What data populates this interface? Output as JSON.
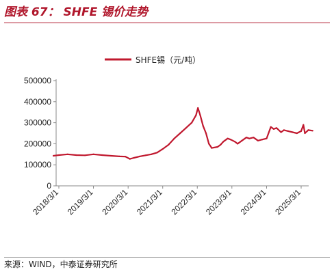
{
  "header": {
    "title": "图表 67： SHFE 锡价走势"
  },
  "footer": {
    "source": "来源：WIND，中泰证券研究所"
  },
  "chart_data": {
    "type": "line",
    "title": "",
    "xlabel": "",
    "ylabel": "",
    "legend_position": "top-center",
    "grid": false,
    "ylim": [
      0,
      500000
    ],
    "y_ticks": [
      "0",
      "100000",
      "200000",
      "300000",
      "400000",
      "500000"
    ],
    "x_ticks": [
      "2018/3/1",
      "2019/3/1",
      "2020/3/1",
      "2021/3/1",
      "2022/3/1",
      "2023/3/1",
      "2024/3/1",
      "2025/3/1"
    ],
    "series": [
      {
        "name": "SHFE锡（元/吨）",
        "color": "#c0182e",
        "x": [
          "2018/1/2",
          "2018/3/1",
          "2018/6/1",
          "2018/9/1",
          "2018/12/1",
          "2019/3/1",
          "2019/6/1",
          "2019/9/1",
          "2019/12/1",
          "2020/2/1",
          "2020/3/20",
          "2020/5/1",
          "2020/7/1",
          "2020/9/1",
          "2020/11/1",
          "2021/1/1",
          "2021/3/1",
          "2021/5/1",
          "2021/7/1",
          "2021/9/1",
          "2021/11/1",
          "2022/1/1",
          "2022/2/15",
          "2022/3/8",
          "2022/4/1",
          "2022/5/1",
          "2022/6/1",
          "2022/7/1",
          "2022/8/1",
          "2022/10/1",
          "2022/11/1",
          "2022/12/1",
          "2023/1/15",
          "2023/2/15",
          "2023/4/1",
          "2023/5/1",
          "2023/6/15",
          "2023/8/1",
          "2023/9/1",
          "2023/10/15",
          "2023/12/1",
          "2024/1/15",
          "2024/3/1",
          "2024/4/15",
          "2024/5/15",
          "2024/6/15",
          "2024/8/1",
          "2024/9/1",
          "2024/10/15",
          "2024/12/1",
          "2025/1/15",
          "2025/3/1",
          "2025/3/25",
          "2025/4/10",
          "2025/5/15",
          "2025/6/30"
        ],
        "values": [
          143000,
          146000,
          150000,
          146000,
          145000,
          150000,
          146000,
          143000,
          140000,
          139000,
          128000,
          133000,
          140000,
          145000,
          150000,
          158000,
          175000,
          195000,
          225000,
          250000,
          275000,
          300000,
          335000,
          370000,
          335000,
          285000,
          250000,
          200000,
          180000,
          185000,
          195000,
          210000,
          225000,
          220000,
          210000,
          200000,
          215000,
          230000,
          225000,
          230000,
          215000,
          220000,
          225000,
          280000,
          270000,
          275000,
          255000,
          265000,
          260000,
          255000,
          250000,
          260000,
          290000,
          250000,
          265000,
          262000
        ]
      }
    ]
  }
}
